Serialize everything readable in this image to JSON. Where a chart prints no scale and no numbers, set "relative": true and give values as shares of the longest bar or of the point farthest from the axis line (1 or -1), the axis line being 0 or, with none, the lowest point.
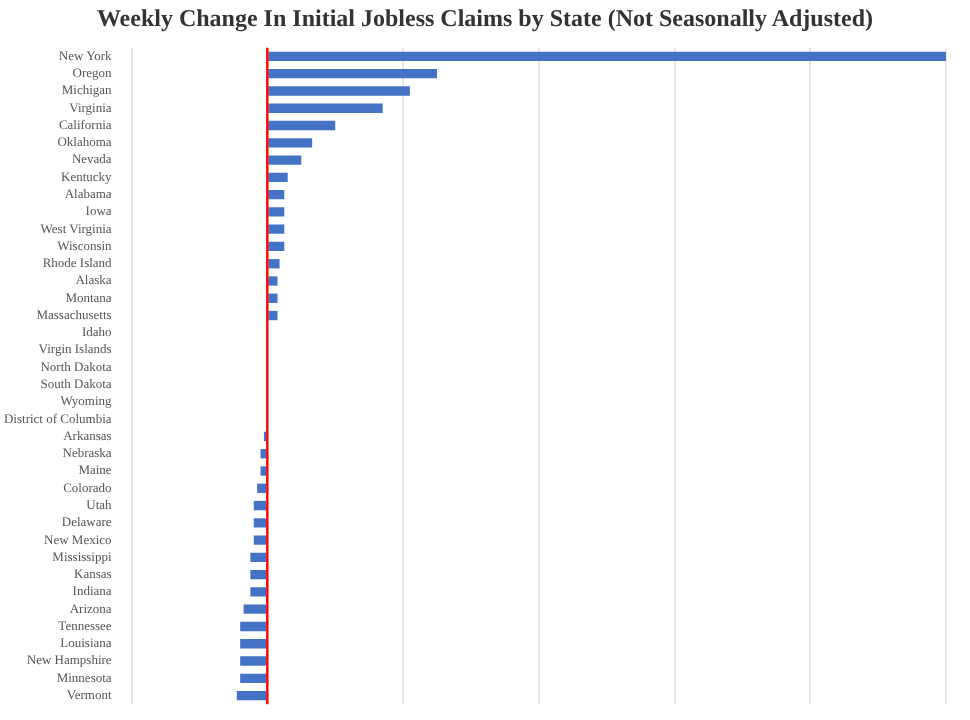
{
  "chart_data": {
    "type": "bar",
    "orientation": "horizontal",
    "relative": true,
    "title": "Weekly Change In Initial Jobless Claims by State (Not Seasonally Adjusted)",
    "categories": [
      "New York",
      "Oregon",
      "Michigan",
      "Virginia",
      "California",
      "Oklahoma",
      "Nevada",
      "Kentucky",
      "Alabama",
      "Iowa",
      "West Virginia",
      "Wisconsin",
      "Rhode Island",
      "Alaska",
      "Montana",
      "Massachusetts",
      "Idaho",
      "Virgin Islands",
      "North Dakota",
      "South Dakota",
      "Wyoming",
      "District of Columbia",
      "Arkansas",
      "Nebraska",
      "Maine",
      "Colorado",
      "Utah",
      "Delaware",
      "New Mexico",
      "Mississippi",
      "Kansas",
      "Indiana",
      "Arizona",
      "Tennessee",
      "Louisiana",
      "New Hampshire",
      "Minnesota",
      "Vermont"
    ],
    "values": [
      1,
      0.25,
      0.21,
      0.17,
      0.1,
      0.066,
      0.05,
      0.03,
      0.025,
      0.025,
      0.025,
      0.025,
      0.018,
      0.015,
      0.015,
      0.015,
      0,
      0,
      0,
      0,
      0,
      0,
      -0.005,
      -0.01,
      -0.01,
      -0.015,
      -0.02,
      -0.02,
      -0.02,
      -0.025,
      -0.025,
      -0.025,
      -0.035,
      -0.04,
      -0.04,
      -0.04,
      -0.04,
      -0.045
    ],
    "color": "#4472c4",
    "grid": "x",
    "ref_lines": [
      {
        "axis": "x",
        "value": 0,
        "color": "#ff0000"
      }
    ]
  }
}
